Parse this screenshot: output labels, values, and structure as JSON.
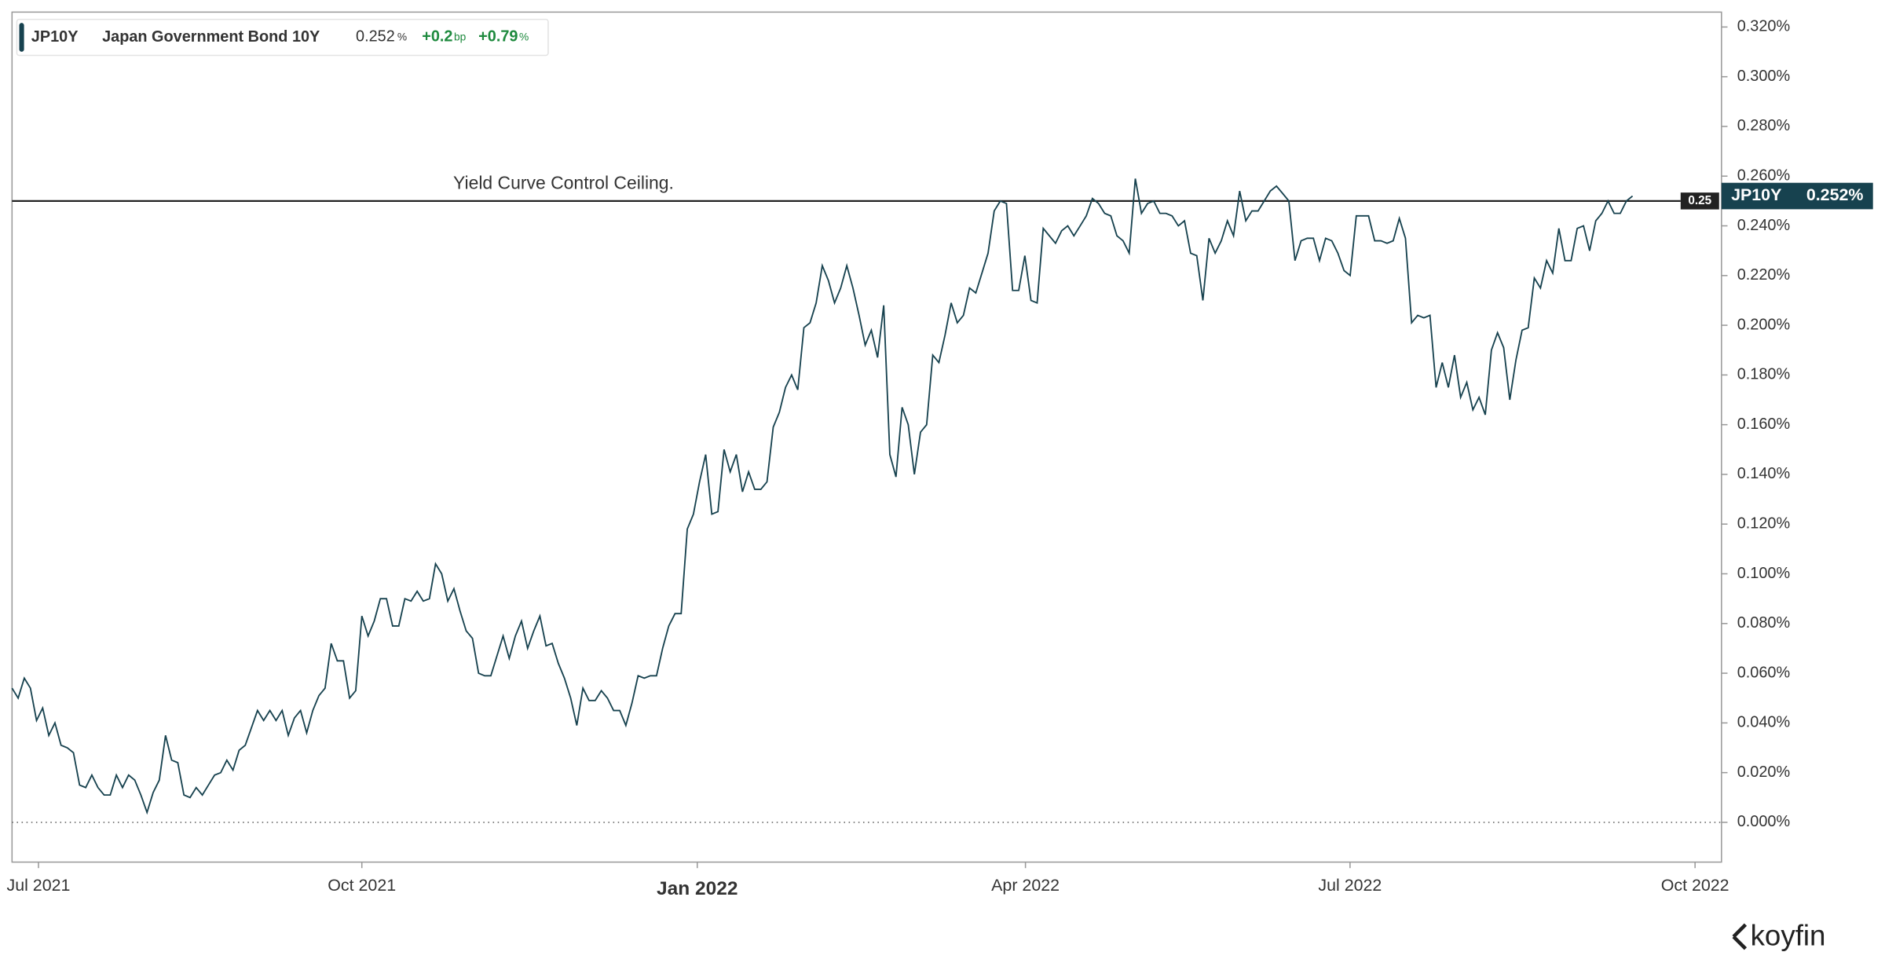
{
  "header": {
    "symbol": "JP10Y",
    "name": "Japan Government Bond 10Y",
    "price": "0.252",
    "price_unit": "%",
    "change": "+0.2",
    "change_unit": "bp",
    "change_pct": "+0.79",
    "change_pct_unit": "%"
  },
  "chart_data": {
    "type": "line",
    "color": "#17424f",
    "series": [
      {
        "name": "JP10Y",
        "color": "#17424f",
        "values": [
          0.054,
          0.05,
          0.058,
          0.054,
          0.041,
          0.046,
          0.035,
          0.04,
          0.031,
          0.03,
          0.028,
          0.015,
          0.014,
          0.019,
          0.014,
          0.011,
          0.011,
          0.019,
          0.014,
          0.019,
          0.017,
          0.011,
          0.004,
          0.012,
          0.017,
          0.035,
          0.025,
          0.024,
          0.011,
          0.01,
          0.014,
          0.011,
          0.015,
          0.019,
          0.02,
          0.025,
          0.021,
          0.029,
          0.031,
          0.038,
          0.045,
          0.041,
          0.045,
          0.041,
          0.045,
          0.035,
          0.042,
          0.045,
          0.036,
          0.045,
          0.051,
          0.054,
          0.072,
          0.065,
          0.065,
          0.05,
          0.053,
          0.083,
          0.075,
          0.081,
          0.09,
          0.09,
          0.079,
          0.079,
          0.09,
          0.089,
          0.093,
          0.089,
          0.09,
          0.104,
          0.1,
          0.089,
          0.094,
          0.085,
          0.077,
          0.074,
          0.06,
          0.059,
          0.059,
          0.067,
          0.075,
          0.066,
          0.075,
          0.081,
          0.07,
          0.077,
          0.083,
          0.071,
          0.072,
          0.064,
          0.058,
          0.05,
          0.039,
          0.054,
          0.049,
          0.049,
          0.053,
          0.05,
          0.045,
          0.045,
          0.039,
          0.048,
          0.059,
          0.058,
          0.059,
          0.059,
          0.07,
          0.079,
          0.084,
          0.084,
          0.118,
          0.124,
          0.137,
          0.148,
          0.124,
          0.125,
          0.15,
          0.141,
          0.148,
          0.133,
          0.141,
          0.134,
          0.134,
          0.137,
          0.159,
          0.165,
          0.175,
          0.18,
          0.174,
          0.199,
          0.201,
          0.209,
          0.224,
          0.218,
          0.209,
          0.215,
          0.224,
          0.215,
          0.204,
          0.192,
          0.198,
          0.187,
          0.208,
          0.148,
          0.139,
          0.167,
          0.16,
          0.14,
          0.157,
          0.16,
          0.188,
          0.185,
          0.196,
          0.209,
          0.201,
          0.204,
          0.215,
          0.213,
          0.221,
          0.229,
          0.246,
          0.25,
          0.249,
          0.214,
          0.214,
          0.228,
          0.21,
          0.209,
          0.239,
          0.236,
          0.233,
          0.238,
          0.24,
          0.236,
          0.24,
          0.244,
          0.251,
          0.249,
          0.245,
          0.244,
          0.236,
          0.234,
          0.229,
          0.259,
          0.245,
          0.249,
          0.25,
          0.245,
          0.245,
          0.244,
          0.24,
          0.242,
          0.229,
          0.228,
          0.21,
          0.235,
          0.229,
          0.234,
          0.242,
          0.236,
          0.254,
          0.242,
          0.246,
          0.246,
          0.25,
          0.254,
          0.256,
          0.253,
          0.25,
          0.226,
          0.234,
          0.235,
          0.235,
          0.226,
          0.235,
          0.234,
          0.229,
          0.222,
          0.22,
          0.244,
          0.244,
          0.244,
          0.234,
          0.234,
          0.233,
          0.234,
          0.243,
          0.235,
          0.201,
          0.204,
          0.203,
          0.204,
          0.175,
          0.185,
          0.175,
          0.188,
          0.171,
          0.177,
          0.166,
          0.171,
          0.164,
          0.19,
          0.197,
          0.191,
          0.17,
          0.186,
          0.198,
          0.199,
          0.219,
          0.215,
          0.226,
          0.221,
          0.239,
          0.226,
          0.226,
          0.239,
          0.24,
          0.23,
          0.242,
          0.245,
          0.25,
          0.245,
          0.245,
          0.25,
          0.252
        ]
      }
    ],
    "last_label": "0.252%",
    "xtick_labels": [
      "Jul 2021",
      "Oct 2021",
      "Jan 2022",
      "Apr 2022",
      "Jul 2022",
      "Oct 2022"
    ],
    "ylim": [
      -0.016,
      0.326
    ],
    "yticks": [
      {
        "value": 0,
        "label": "0.000%"
      },
      {
        "value": 0.02,
        "label": "0.020%"
      },
      {
        "value": 0.04,
        "label": "0.040%"
      },
      {
        "value": 0.06,
        "label": "0.060%"
      },
      {
        "value": 0.08,
        "label": "0.080%"
      },
      {
        "value": 0.1,
        "label": "0.100%"
      },
      {
        "value": 0.12,
        "label": "0.120%"
      },
      {
        "value": 0.14,
        "label": "0.140%"
      },
      {
        "value": 0.16,
        "label": "0.160%"
      },
      {
        "value": 0.18,
        "label": "0.180%"
      },
      {
        "value": 0.2,
        "label": "0.200%"
      },
      {
        "value": 0.22,
        "label": "0.220%"
      },
      {
        "value": 0.24,
        "label": "0.240%"
      },
      {
        "value": 0.26,
        "label": "0.260%"
      },
      {
        "value": 0.28,
        "label": "0.280%"
      },
      {
        "value": 0.3,
        "label": "0.300%"
      },
      {
        "value": 0.32,
        "label": "0.320%"
      }
    ],
    "reference_line": {
      "value": 0.25,
      "label": "0.25",
      "annotation": "Yield Curve Control Ceiling."
    }
  },
  "logo": "koyfin"
}
